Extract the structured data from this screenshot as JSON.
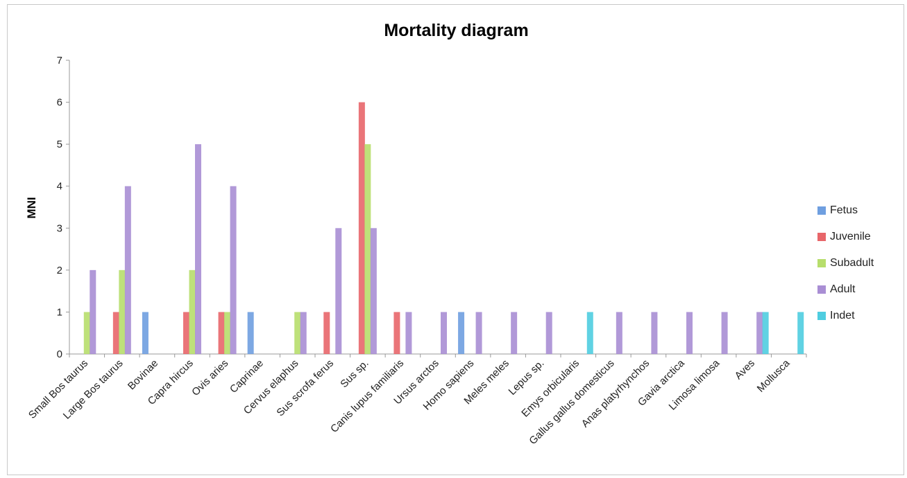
{
  "chart_data": {
    "type": "bar",
    "title": "Mortality diagram",
    "xlabel": "",
    "ylabel": "MNI",
    "ylim": [
      0,
      7
    ],
    "yticks": [
      "0",
      "1",
      "2",
      "3",
      "4",
      "5",
      "6",
      "7"
    ],
    "grid": false,
    "legend_position": "right",
    "categories": [
      "Small Bos taurus",
      "Large Bos taurus",
      "Bovinae",
      "Capra hircus",
      "Ovis aries",
      "Caprinae",
      "Cervus elaphus",
      "Sus scrofa ferus",
      "Sus sp.",
      "Canis lupus familiaris",
      "Ursus arctos",
      "Homo sapiens",
      "Meles meles",
      "Lepus sp.",
      "Emys orbicularis",
      "Gallus gallus domesticus",
      "Anas platyrhynchos",
      "Gavia arctica",
      "Limosa limosa",
      "Aves",
      "Mollusca"
    ],
    "series": [
      {
        "name": "Fetus",
        "color": "#6f9fe0",
        "values": [
          0,
          0,
          1,
          0,
          0,
          1,
          0,
          0,
          0,
          0,
          0,
          1,
          0,
          0,
          0,
          0,
          0,
          0,
          0,
          0,
          0
        ]
      },
      {
        "name": "Juvenile",
        "color": "#e8666a",
        "values": [
          0,
          1,
          0,
          1,
          1,
          0,
          0,
          1,
          6,
          1,
          0,
          0,
          0,
          0,
          0,
          0,
          0,
          0,
          0,
          0,
          0
        ]
      },
      {
        "name": "Subadult",
        "color": "#b7de6c",
        "values": [
          1,
          2,
          0,
          2,
          1,
          0,
          1,
          0,
          5,
          0,
          0,
          0,
          0,
          0,
          0,
          0,
          0,
          0,
          0,
          0,
          0
        ]
      },
      {
        "name": "Adult",
        "color": "#a98ed4",
        "values": [
          2,
          4,
          0,
          5,
          4,
          0,
          1,
          3,
          3,
          1,
          1,
          1,
          1,
          1,
          0,
          1,
          1,
          1,
          1,
          1,
          0
        ]
      },
      {
        "name": "Indet",
        "color": "#4fcde0",
        "values": [
          0,
          0,
          0,
          0,
          0,
          0,
          0,
          0,
          0,
          0,
          0,
          0,
          0,
          0,
          1,
          0,
          0,
          0,
          0,
          1,
          1
        ]
      }
    ]
  }
}
